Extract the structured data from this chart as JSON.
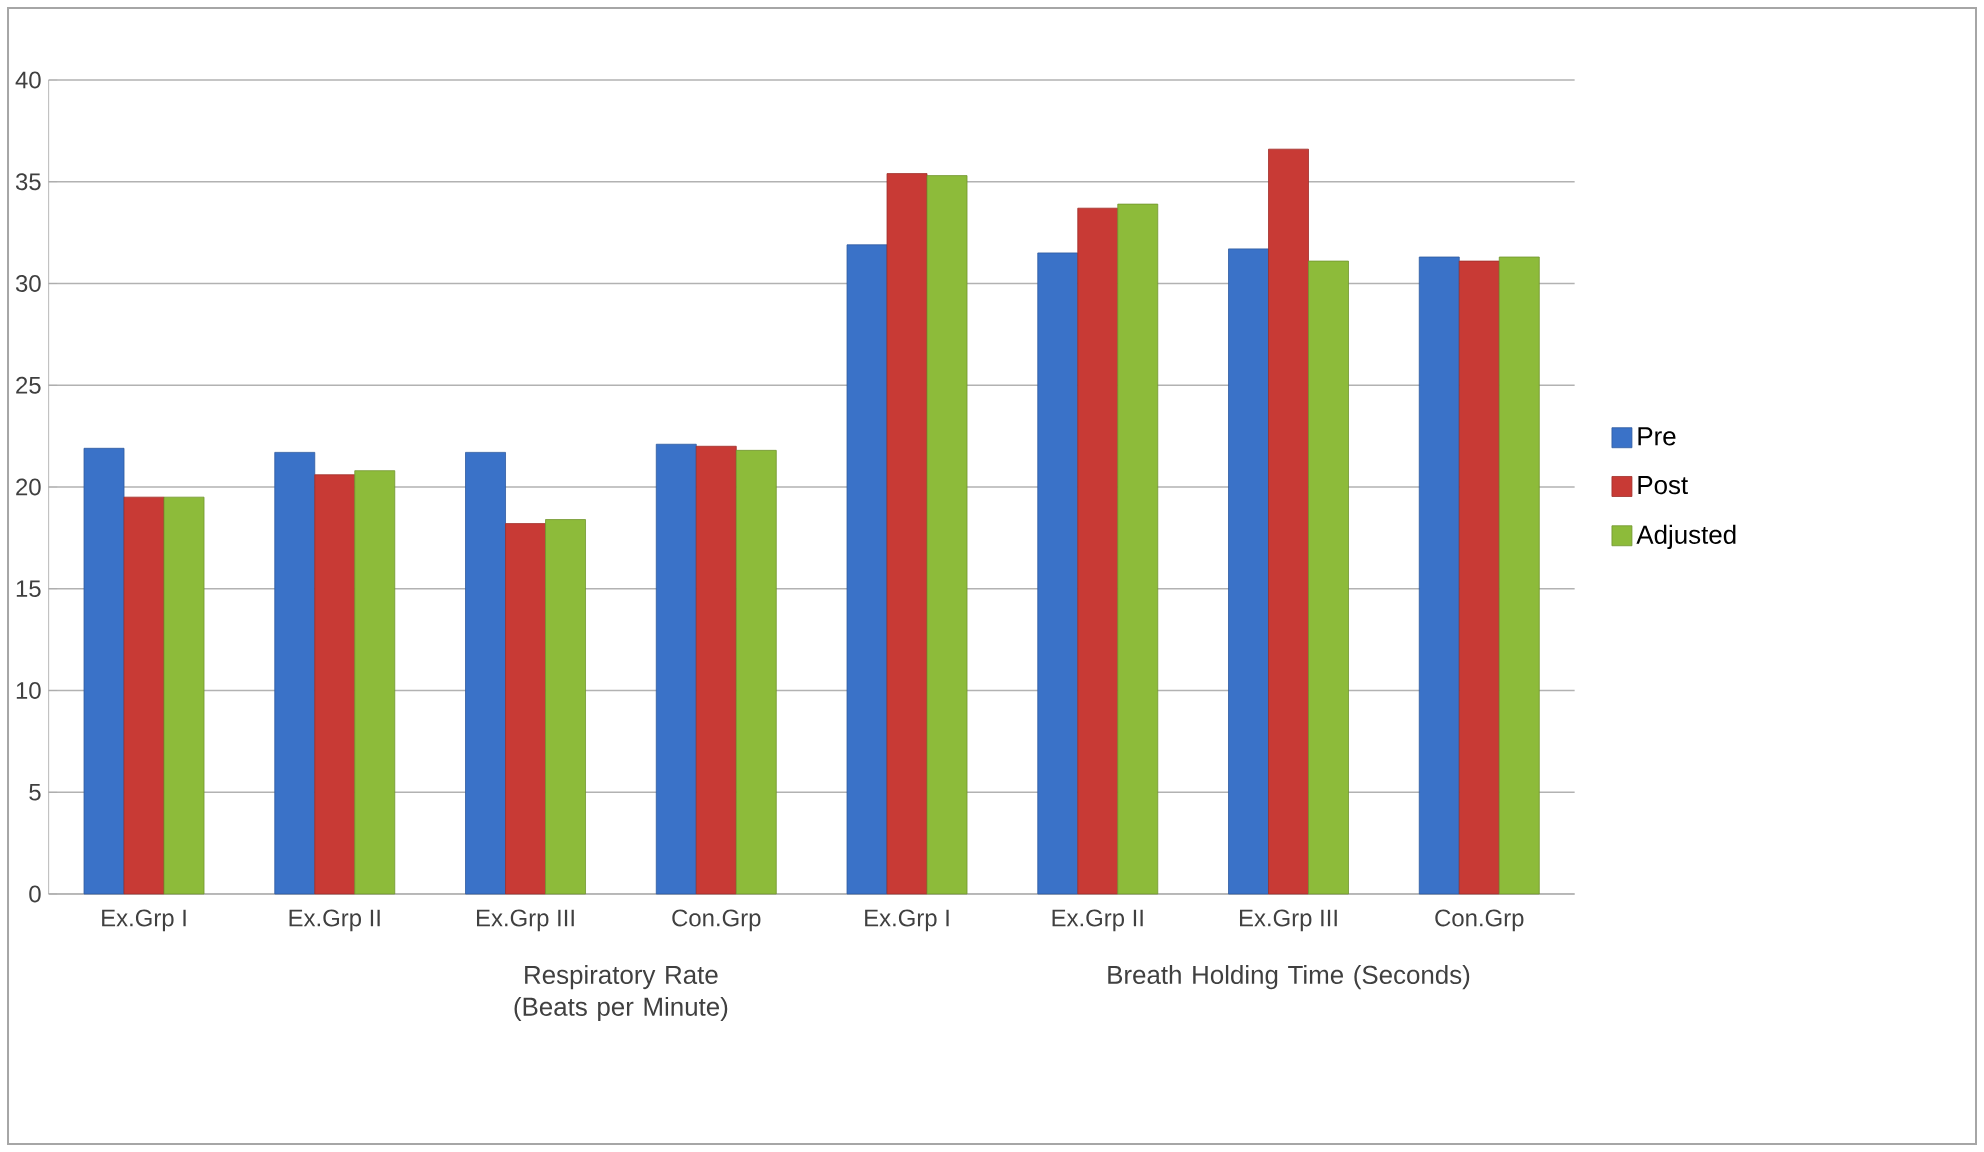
{
  "chart_data": {
    "type": "bar",
    "categories": [
      "Ex.Grp I",
      "Ex.Grp II",
      "Ex.Grp III",
      "Con.Grp",
      "Ex.Grp I",
      "Ex.Grp II",
      "Ex.Grp III",
      "Con.Grp"
    ],
    "series": [
      {
        "name": "Pre",
        "color": "#3a72c8",
        "values": [
          21.9,
          21.7,
          21.7,
          22.1,
          31.9,
          31.5,
          31.7,
          31.3
        ]
      },
      {
        "name": "Post",
        "color": "#c83a35",
        "values": [
          19.5,
          20.6,
          18.2,
          22.0,
          35.4,
          33.7,
          36.6,
          31.1
        ]
      },
      {
        "name": "Adjusted",
        "color": "#8dbb3a",
        "values": [
          19.5,
          20.8,
          18.4,
          21.8,
          35.3,
          33.9,
          31.1,
          31.3
        ]
      }
    ],
    "annotations": [
      "Respiratory Rate (Beats per Minute)",
      "Breath Holding Time (Seconds)"
    ],
    "ylim": [
      0,
      40
    ],
    "yticks": [
      0,
      5,
      10,
      15,
      20,
      25,
      30,
      35,
      40
    ],
    "grid": "y",
    "legend": "right"
  }
}
